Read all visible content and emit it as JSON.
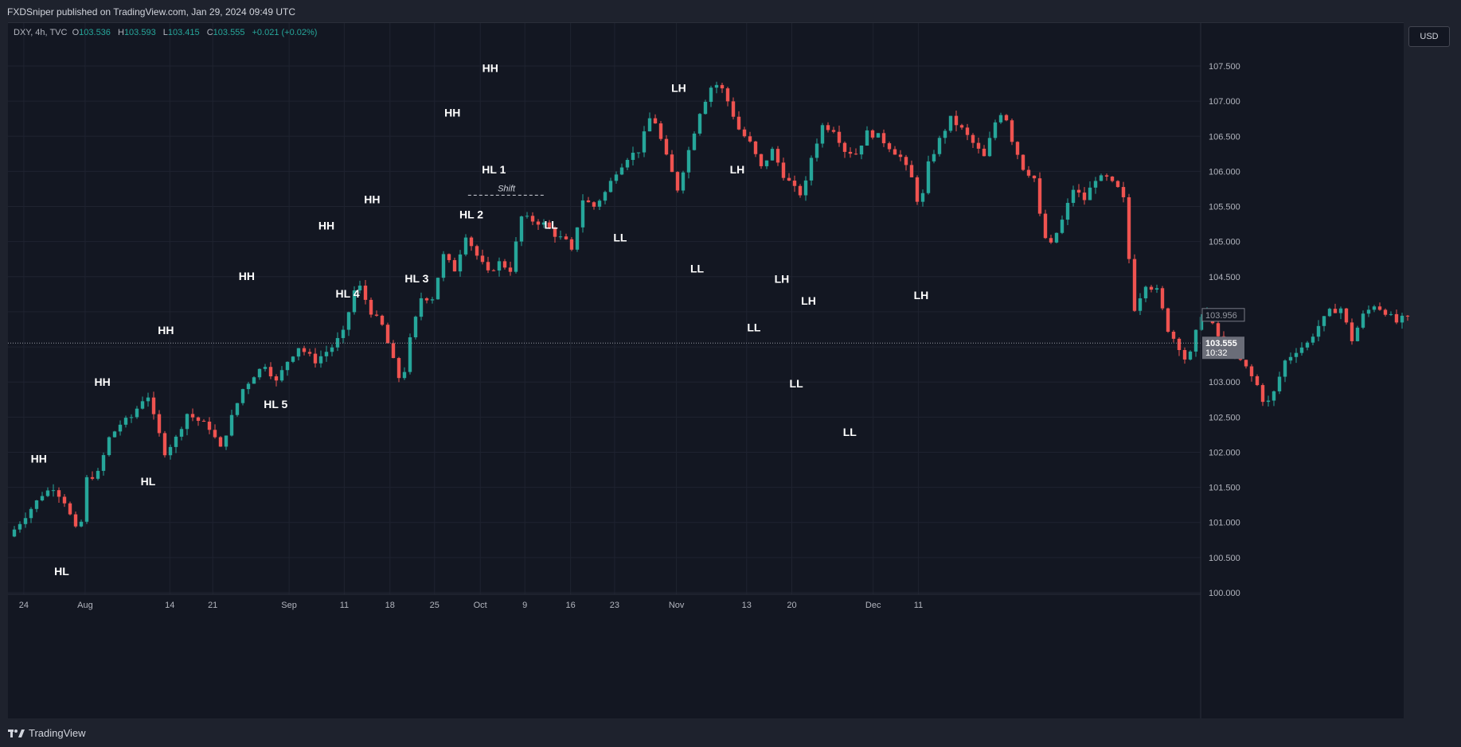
{
  "header": {
    "publisher_text": "FXDSniper published on TradingView.com, Jan 29, 2024 09:49 UTC"
  },
  "legend": {
    "symbol": "DXY, 4h, TVC",
    "open_label": "O",
    "open": "103.536",
    "high_label": "H",
    "high": "103.593",
    "low_label": "L",
    "low": "103.415",
    "close_label": "C",
    "close": "103.555",
    "change": "+0.021 (+0.02%)"
  },
  "currency": "USD",
  "price_tags": {
    "last_price": "103.555",
    "countdown": "10:32",
    "ref_price": "103.956"
  },
  "footer": {
    "brand": "TradingView"
  },
  "colors": {
    "bg": "#131722",
    "up": "#26a69a",
    "down": "#ef5350",
    "grid": "#1f2330",
    "text": "#d1d4dc"
  },
  "chart_data": {
    "type": "candlestick",
    "symbol": "DXY",
    "timeframe": "4h",
    "ylim": [
      99.95,
      107.8
    ],
    "y_ticks": [
      "100.000",
      "100.500",
      "101.000",
      "101.500",
      "102.000",
      "102.500",
      "103.000",
      "103.500",
      "104.000",
      "104.500",
      "105.000",
      "105.500",
      "106.000",
      "106.500",
      "107.000",
      "107.500"
    ],
    "x_ticks": [
      "24",
      "Aug",
      "14",
      "21",
      "Sep",
      "11",
      "18",
      "25",
      "Oct",
      "9",
      "16",
      "23",
      "Nov",
      "13",
      "20",
      "Dec",
      "11"
    ],
    "price_path": [
      [
        0,
        100.8
      ],
      [
        3,
        101.1
      ],
      [
        6,
        101.4
      ],
      [
        8,
        101.5
      ],
      [
        10,
        101.3
      ],
      [
        12,
        100.9
      ],
      [
        12.7,
        100.65
      ],
      [
        13.5,
        101.6
      ],
      [
        16,
        101.7
      ],
      [
        18,
        102.2
      ],
      [
        20,
        102.4
      ],
      [
        22,
        102.5
      ],
      [
        24,
        102.75
      ],
      [
        25,
        102.8
      ],
      [
        26,
        102.5
      ],
      [
        28,
        102.0
      ],
      [
        30,
        102.2
      ],
      [
        32,
        102.55
      ],
      [
        34,
        102.45
      ],
      [
        36,
        102.35
      ],
      [
        38,
        102.05
      ],
      [
        40,
        102.5
      ],
      [
        42,
        102.9
      ],
      [
        44,
        103.1
      ],
      [
        46,
        103.25
      ],
      [
        48,
        103.0
      ],
      [
        50,
        103.3
      ],
      [
        52,
        103.5
      ],
      [
        55,
        103.3
      ],
      [
        58,
        103.5
      ],
      [
        60,
        103.7
      ],
      [
        62,
        104.3
      ],
      [
        63,
        104.35
      ],
      [
        65,
        104.0
      ],
      [
        67,
        103.8
      ],
      [
        69,
        103.3
      ],
      [
        70.5,
        102.95
      ],
      [
        72,
        103.6
      ],
      [
        74,
        104.2
      ],
      [
        76,
        104.2
      ],
      [
        78,
        104.8
      ],
      [
        80,
        104.6
      ],
      [
        82,
        105.1
      ],
      [
        84,
        104.8
      ],
      [
        86,
        104.55
      ],
      [
        88,
        104.7
      ],
      [
        90,
        104.6
      ],
      [
        92,
        105.35
      ],
      [
        94,
        105.3
      ],
      [
        96,
        105.25
      ],
      [
        98,
        105.1
      ],
      [
        100,
        105.0
      ],
      [
        101,
        104.85
      ],
      [
        103,
        105.6
      ],
      [
        105,
        105.5
      ],
      [
        107,
        105.7
      ],
      [
        109,
        106.0
      ],
      [
        111,
        106.2
      ],
      [
        113,
        106.3
      ],
      [
        115,
        106.75
      ],
      [
        116,
        106.7
      ],
      [
        118,
        106.2
      ],
      [
        120,
        105.75
      ],
      [
        122,
        106.3
      ],
      [
        124,
        106.85
      ],
      [
        126,
        107.2
      ],
      [
        127.5,
        107.25
      ],
      [
        129,
        107.0
      ],
      [
        131,
        106.6
      ],
      [
        133,
        106.4
      ],
      [
        135,
        106.05
      ],
      [
        137,
        106.3
      ],
      [
        139,
        105.95
      ],
      [
        141,
        105.75
      ],
      [
        142.5,
        105.65
      ],
      [
        144,
        106.2
      ],
      [
        146,
        106.65
      ],
      [
        148,
        106.6
      ],
      [
        150,
        106.3
      ],
      [
        152,
        106.25
      ],
      [
        154,
        106.55
      ],
      [
        156,
        106.5
      ],
      [
        158,
        106.35
      ],
      [
        160,
        106.2
      ],
      [
        162,
        105.9
      ],
      [
        163.5,
        105.45
      ],
      [
        165,
        106.1
      ],
      [
        167,
        106.45
      ],
      [
        169,
        106.75
      ],
      [
        171,
        106.6
      ],
      [
        173,
        106.4
      ],
      [
        175,
        106.2
      ],
      [
        177,
        106.7
      ],
      [
        178.5,
        106.9
      ],
      [
        180,
        106.45
      ],
      [
        182,
        106.05
      ],
      [
        184,
        105.9
      ],
      [
        185.5,
        105.1
      ],
      [
        187,
        104.95
      ],
      [
        189,
        105.3
      ],
      [
        191,
        105.75
      ],
      [
        193,
        105.6
      ],
      [
        195,
        105.9
      ],
      [
        197,
        105.9
      ],
      [
        199,
        105.75
      ],
      [
        200,
        105.6
      ],
      [
        201.3,
        104.5
      ],
      [
        202,
        104.05
      ],
      [
        204,
        104.4
      ],
      [
        206,
        104.3
      ],
      [
        208,
        103.75
      ],
      [
        210,
        103.5
      ],
      [
        211.5,
        103.25
      ],
      [
        213,
        103.7
      ],
      [
        214.5,
        104.1
      ],
      [
        216,
        103.8
      ],
      [
        218,
        103.5
      ],
      [
        220,
        103.4
      ],
      [
        222,
        103.2
      ],
      [
        224,
        102.95
      ],
      [
        225.5,
        102.65
      ],
      [
        227,
        102.85
      ],
      [
        229,
        103.3
      ],
      [
        231,
        103.45
      ],
      [
        233,
        103.55
      ],
      [
        235,
        103.8
      ],
      [
        237,
        104.0
      ],
      [
        239,
        104.05
      ],
      [
        241,
        103.6
      ],
      [
        243,
        103.95
      ],
      [
        245,
        104.1
      ],
      [
        247,
        104.0
      ],
      [
        249,
        103.85
      ],
      [
        250,
        103.9
      ]
    ],
    "x_tick_positions": [
      1.7,
      12.7,
      27.9,
      35.6,
      49.3,
      59.2,
      67.4,
      75.4,
      83.6,
      91.6,
      99.8,
      107.7,
      118.8,
      131.4,
      139.5,
      154.1,
      162.2
    ],
    "total_candles": 250,
    "annotations": [
      {
        "text": "HH",
        "x": 4.4,
        "price": 101.74,
        "pos": "above"
      },
      {
        "text": "HL",
        "x": 8.5,
        "price": 100.5,
        "pos": "below"
      },
      {
        "text": "HH",
        "x": 15.8,
        "price": 102.83,
        "pos": "above"
      },
      {
        "text": "HL",
        "x": 24.0,
        "price": 101.78,
        "pos": "below"
      },
      {
        "text": "HH",
        "x": 27.2,
        "price": 103.57,
        "pos": "above"
      },
      {
        "text": "HH",
        "x": 41.7,
        "price": 104.34,
        "pos": "above"
      },
      {
        "text": "HL 5",
        "x": 46.9,
        "price": 102.88,
        "pos": "below"
      },
      {
        "text": "HH",
        "x": 56.0,
        "price": 105.06,
        "pos": "above"
      },
      {
        "text": "HL 4",
        "x": 59.8,
        "price": 104.45,
        "pos": "below"
      },
      {
        "text": "HH",
        "x": 64.2,
        "price": 105.43,
        "pos": "above"
      },
      {
        "text": "HL 3",
        "x": 72.2,
        "price": 104.67,
        "pos": "below"
      },
      {
        "text": "HH",
        "x": 78.6,
        "price": 106.67,
        "pos": "above"
      },
      {
        "text": "HH",
        "x": 85.4,
        "price": 107.3,
        "pos": "above"
      },
      {
        "text": "HL 2",
        "x": 82.0,
        "price": 105.58,
        "pos": "below"
      },
      {
        "text": "HL 1",
        "x": 88.2,
        "price": 106.03,
        "pos": "left"
      },
      {
        "text": "LL",
        "x": 96.3,
        "price": 105.43,
        "pos": "below"
      },
      {
        "text": "LL",
        "x": 108.7,
        "price": 105.25,
        "pos": "below"
      },
      {
        "text": "LH",
        "x": 119.2,
        "price": 107.02,
        "pos": "above"
      },
      {
        "text": "LL",
        "x": 122.5,
        "price": 104.81,
        "pos": "below"
      },
      {
        "text": "LH",
        "x": 129.7,
        "price": 105.86,
        "pos": "above"
      },
      {
        "text": "LL",
        "x": 132.7,
        "price": 103.97,
        "pos": "below"
      },
      {
        "text": "LH",
        "x": 137.7,
        "price": 104.3,
        "pos": "above"
      },
      {
        "text": "LL",
        "x": 140.3,
        "price": 103.17,
        "pos": "below"
      },
      {
        "text": "LH",
        "x": 142.5,
        "price": 103.99,
        "pos": "above"
      },
      {
        "text": "LL",
        "x": 149.9,
        "price": 102.48,
        "pos": "below"
      },
      {
        "text": "LH",
        "x": 162.7,
        "price": 104.07,
        "pos": "above"
      }
    ],
    "shift_annotation": {
      "text": "Shift",
      "start_x": 81.4,
      "end_x": 95.2,
      "price": 105.66
    },
    "last_price_line": 103.555
  }
}
